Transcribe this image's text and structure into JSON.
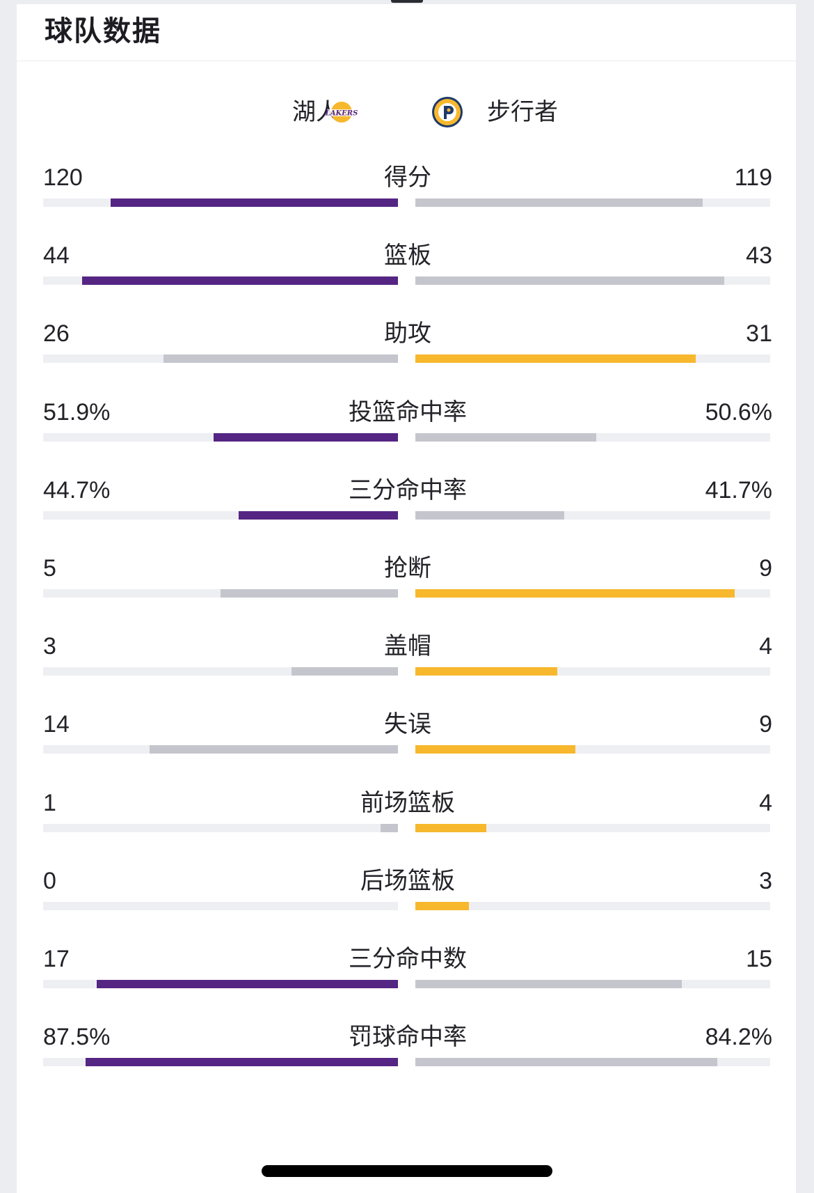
{
  "section": {
    "title": "球队数据"
  },
  "teams": {
    "home": {
      "name": "湖人",
      "logo_icon": "lakers-logo-icon",
      "logo_text": "LAKERS"
    },
    "away": {
      "name": "步行者",
      "logo_icon": "pacers-logo-icon"
    }
  },
  "colors": {
    "home_accent": "#552583",
    "away_accent": "#f7b82d",
    "neutral": "#c5c6cd",
    "track": "#eeeff3"
  },
  "stats": [
    {
      "label": "得分",
      "home": "120",
      "away": "119",
      "home_ratio": 0.81,
      "away_ratio": 0.81,
      "leader": "home"
    },
    {
      "label": "篮板",
      "home": "44",
      "away": "43",
      "home_ratio": 0.89,
      "away_ratio": 0.87,
      "leader": "home"
    },
    {
      "label": "助攻",
      "home": "26",
      "away": "31",
      "home_ratio": 0.66,
      "away_ratio": 0.79,
      "leader": "away"
    },
    {
      "label": "投篮命中率",
      "home": "51.9%",
      "away": "50.6%",
      "home_ratio": 0.52,
      "away_ratio": 0.51,
      "leader": "home"
    },
    {
      "label": "三分命中率",
      "home": "44.7%",
      "away": "41.7%",
      "home_ratio": 0.45,
      "away_ratio": 0.42,
      "leader": "home"
    },
    {
      "label": "抢断",
      "home": "5",
      "away": "9",
      "home_ratio": 0.5,
      "away_ratio": 0.9,
      "leader": "away"
    },
    {
      "label": "盖帽",
      "home": "3",
      "away": "4",
      "home_ratio": 0.3,
      "away_ratio": 0.4,
      "leader": "away"
    },
    {
      "label": "失误",
      "home": "14",
      "away": "9",
      "home_ratio": 0.7,
      "away_ratio": 0.45,
      "leader": "away"
    },
    {
      "label": "前场篮板",
      "home": "1",
      "away": "4",
      "home_ratio": 0.05,
      "away_ratio": 0.2,
      "leader": "away"
    },
    {
      "label": "后场篮板",
      "home": "0",
      "away": "3",
      "home_ratio": 0,
      "away_ratio": 0.15,
      "leader": "away"
    },
    {
      "label": "三分命中数",
      "home": "17",
      "away": "15",
      "home_ratio": 0.85,
      "away_ratio": 0.75,
      "leader": "home"
    },
    {
      "label": "罚球命中率",
      "home": "87.5%",
      "away": "84.2%",
      "home_ratio": 0.88,
      "away_ratio": 0.85,
      "leader": "home"
    }
  ]
}
